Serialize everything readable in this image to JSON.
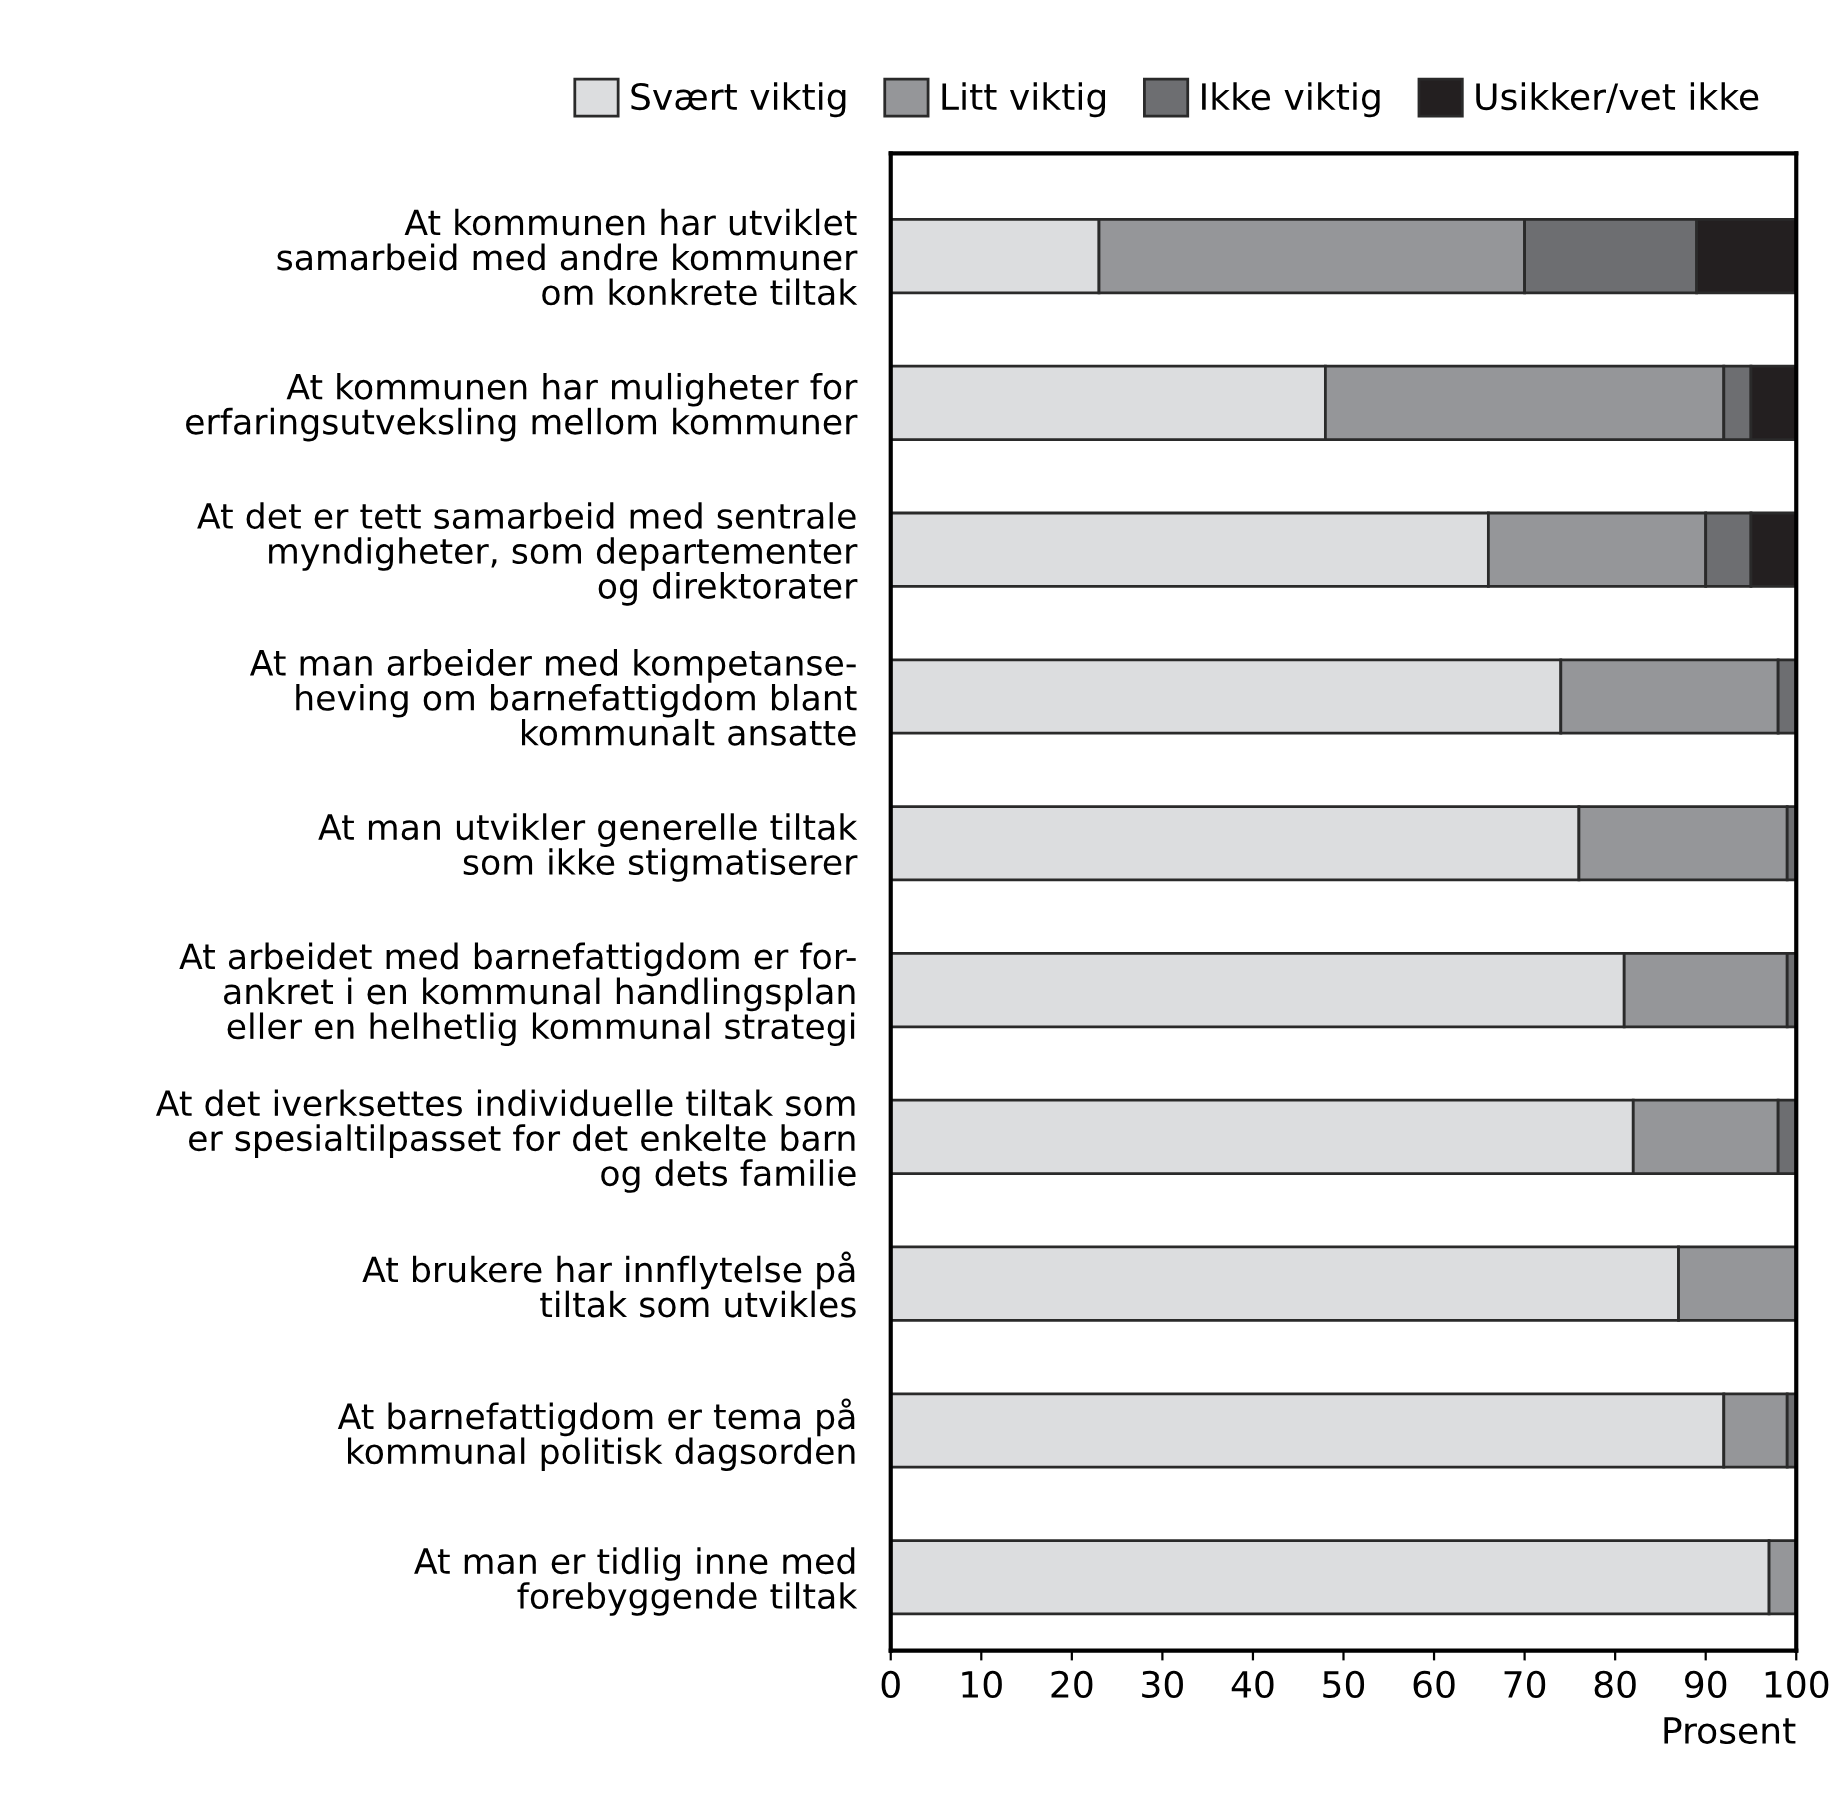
{
  "chart_data": {
    "type": "bar",
    "orientation": "horizontal",
    "stacked": true,
    "categories": [
      "At kommunen har utviklet\nsamarbeid med andre kommuner\nom konkrete tiltak",
      "At kommunen har muligheter for\nerfaringsutveksling mellom kommuner",
      "At det er tett samarbeid med sentrale\nmyndigheter, som departementer\nog direktorater",
      "At man arbeider med kompetanse-\nheving om barnefattigdom blant\nkommunalt ansatte",
      "At man utvikler generelle tiltak\nsom ikke stigmatiserer",
      "At arbeidet med barnefattigdom er for-\nankret i en kommunal handlingsplan\neller en helhetlig kommunal strategi",
      "At det iverksettes individuelle tiltak som\ner spesialtilpasset for det enkelte barn\nog dets familie",
      "At brukere har innflytelse på\ntiltak som utvikles",
      "At barnefattigdom er tema på\nkommunal politisk dagsorden",
      "At man er tidlig inne med\nforebyggende tiltak"
    ],
    "series": [
      {
        "name": "Svært viktig",
        "color": "#dcdddf",
        "values": [
          23,
          48,
          66,
          74,
          76,
          81,
          82,
          87,
          92,
          97
        ]
      },
      {
        "name": "Litt viktig",
        "color": "#959699",
        "values": [
          47,
          44,
          24,
          24,
          23,
          18,
          16,
          13,
          7,
          3
        ]
      },
      {
        "name": "Ikke viktig",
        "color": "#6d6e71",
        "values": [
          19,
          3,
          5,
          2,
          1,
          1,
          2,
          0,
          1,
          0
        ]
      },
      {
        "name": "Usikker/vet ikke",
        "color": "#231f20",
        "values": [
          11,
          5,
          5,
          0,
          0,
          0,
          0,
          0,
          0,
          0
        ]
      }
    ],
    "xlim": [
      0,
      100
    ],
    "xticks": [
      0,
      10,
      20,
      30,
      40,
      50,
      60,
      70,
      80,
      90,
      100
    ],
    "xlabel": "Prosent",
    "legend": "top",
    "grid": false
  }
}
